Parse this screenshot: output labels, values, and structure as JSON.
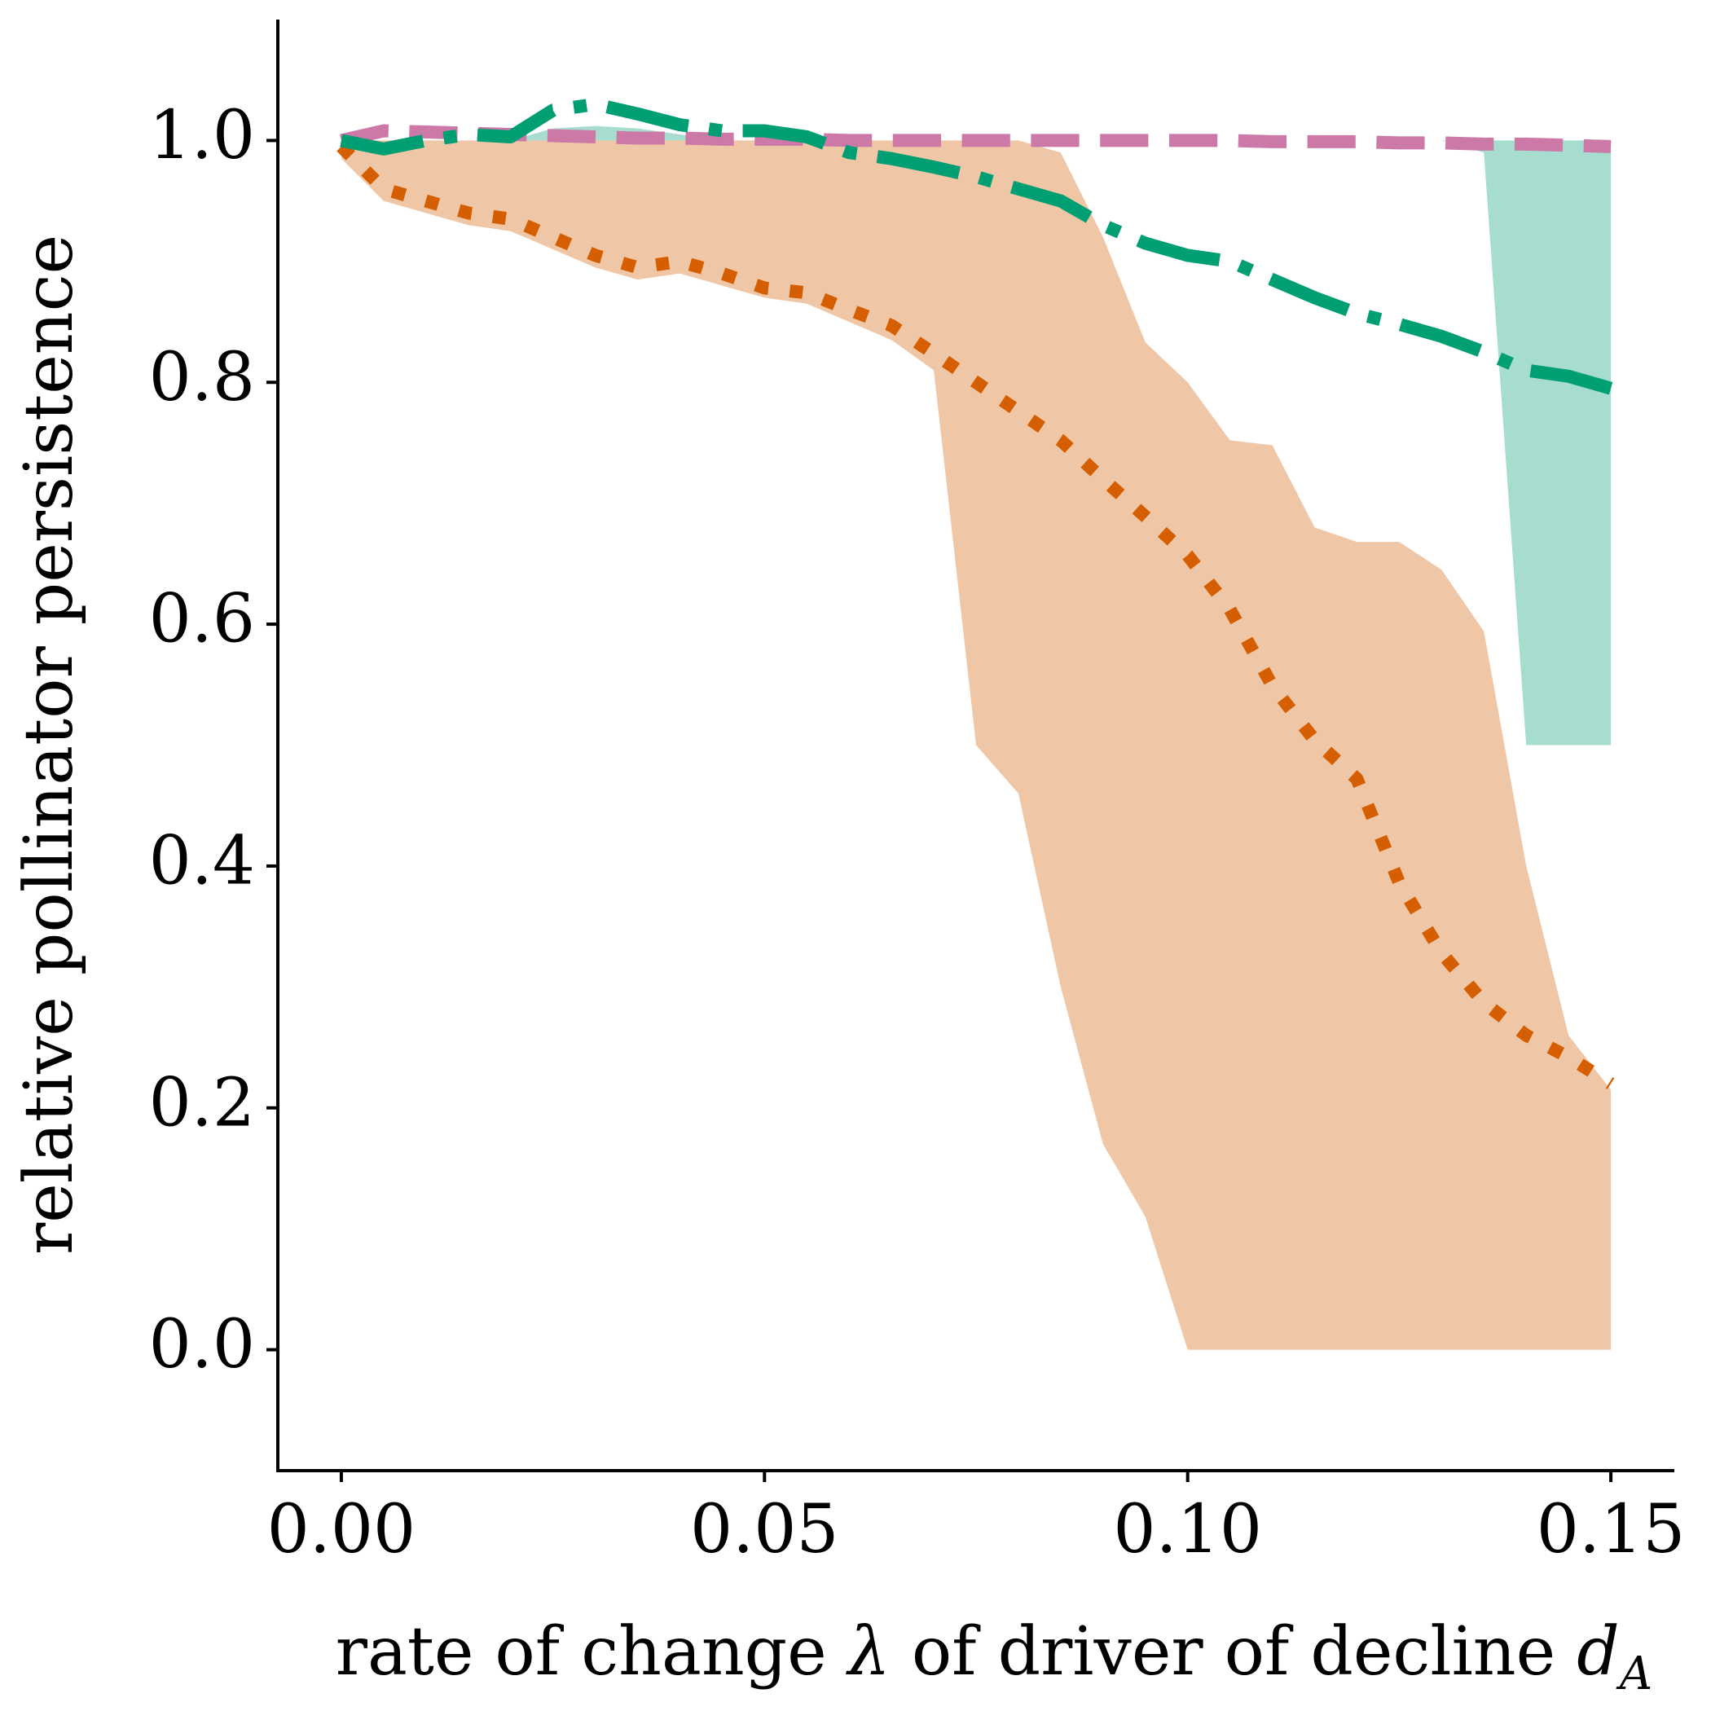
{
  "chart_data": {
    "type": "line",
    "xlabel": {
      "text": "rate of change",
      "symbol": "λ",
      "text2": "of driver of decline",
      "var": "d",
      "sub": "A"
    },
    "ylabel": "relative pollinator persistence",
    "x": [
      0,
      0.005,
      0.01,
      0.015,
      0.02,
      0.025,
      0.03,
      0.035,
      0.04,
      0.045,
      0.05,
      0.055,
      0.06,
      0.065,
      0.07,
      0.075,
      0.08,
      0.085,
      0.09,
      0.095,
      0.1,
      0.105,
      0.11,
      0.115,
      0.12,
      0.125,
      0.13,
      0.135,
      0.14,
      0.145,
      0.15
    ],
    "bands": [
      {
        "color": "#009E73",
        "opacity": 0.35,
        "upper": [
          1.0,
          1.0,
          1.0,
          1.0,
          1.0,
          1.01,
          1.012,
          1.01,
          1.005,
          1.0,
          1.0,
          1.0,
          1.0,
          1.0,
          1.0,
          1.0,
          1.0,
          1.0,
          1.0,
          1.0,
          1.0,
          1.0,
          1.0,
          1.0,
          1.0,
          1.0,
          1.0,
          1.0,
          1.0,
          1.0,
          1.0
        ],
        "lower": [
          1.0,
          1.0,
          1.0,
          1.0,
          1.0,
          1.0,
          1.0,
          1.0,
          1.0,
          1.0,
          1.0,
          1.0,
          1.0,
          1.0,
          1.0,
          1.0,
          1.0,
          1.0,
          1.0,
          1.0,
          1.0,
          1.0,
          1.0,
          1.0,
          1.0,
          1.0,
          1.0,
          0.99,
          0.5,
          0.5,
          0.5
        ]
      },
      {
        "color": "#D55E00",
        "opacity": 0.35,
        "upper": [
          1.0,
          1.0,
          1.0,
          1.0,
          1.0,
          1.0,
          1.0,
          1.0,
          1.0,
          1.0,
          1.0,
          1.0,
          1.0,
          1.0,
          1.0,
          1.0,
          1.0,
          0.99,
          0.92,
          0.833,
          0.8,
          0.752,
          0.748,
          0.68,
          0.668,
          0.668,
          0.645,
          0.594,
          0.4,
          0.26,
          0.215
        ],
        "lower": [
          0.985,
          0.95,
          0.94,
          0.93,
          0.925,
          0.91,
          0.895,
          0.885,
          0.89,
          0.88,
          0.87,
          0.865,
          0.85,
          0.835,
          0.81,
          0.5,
          0.46,
          0.3,
          0.17,
          0.11,
          0.0,
          0.0,
          0.0,
          0.0,
          0.0,
          0.0,
          0.0,
          0.0,
          0.0,
          0.0,
          0.0
        ]
      }
    ],
    "series": [
      {
        "color": "#D55E00",
        "linestyle": "dotted",
        "values": [
          0.995,
          0.96,
          0.95,
          0.94,
          0.935,
          0.92,
          0.905,
          0.895,
          0.9,
          0.89,
          0.878,
          0.874,
          0.86,
          0.847,
          0.824,
          0.8,
          0.776,
          0.752,
          0.72,
          0.689,
          0.657,
          0.612,
          0.549,
          0.504,
          0.472,
          0.386,
          0.328,
          0.287,
          0.26,
          0.242,
          0.22
        ]
      },
      {
        "color": "#CC79A7",
        "linestyle": "dashed",
        "values": [
          1.0,
          1.008,
          1.007,
          1.006,
          1.005,
          1.004,
          1.003,
          1.002,
          1.002,
          1.001,
          1.001,
          1.001,
          1.0,
          1.0,
          1.0,
          1.0,
          1.0,
          1.0,
          1.0,
          1.0,
          1.0,
          1.0,
          0.999,
          0.999,
          0.999,
          0.998,
          0.998,
          0.997,
          0.997,
          0.996,
          0.995
        ]
      },
      {
        "color": "#009E73",
        "linestyle": "dashdot",
        "values": [
          1.0,
          0.993,
          1.0,
          1.005,
          1.003,
          1.025,
          1.03,
          1.022,
          1.013,
          1.008,
          1.008,
          1.003,
          0.99,
          0.985,
          0.978,
          0.97,
          0.96,
          0.95,
          0.93,
          0.915,
          0.905,
          0.9,
          0.885,
          0.87,
          0.857,
          0.848,
          0.838,
          0.825,
          0.81,
          0.805,
          0.795
        ]
      }
    ],
    "xlim": [
      -0.0075,
      0.1575
    ],
    "ylim": [
      -0.1,
      1.1
    ],
    "xticks": [
      {
        "value": 0,
        "label": "0.00"
      },
      {
        "value": 0.05,
        "label": "0.05"
      },
      {
        "value": 0.1,
        "label": "0.10"
      },
      {
        "value": 0.15,
        "label": "0.15"
      }
    ],
    "yticks": [
      {
        "value": 0,
        "label": "0.0"
      },
      {
        "value": 0.2,
        "label": "0.2"
      },
      {
        "value": 0.4,
        "label": "0.4"
      },
      {
        "value": 0.6,
        "label": "0.6"
      },
      {
        "value": 0.8,
        "label": "0.8"
      },
      {
        "value": 1,
        "label": "1.0"
      }
    ],
    "grid": false
  }
}
